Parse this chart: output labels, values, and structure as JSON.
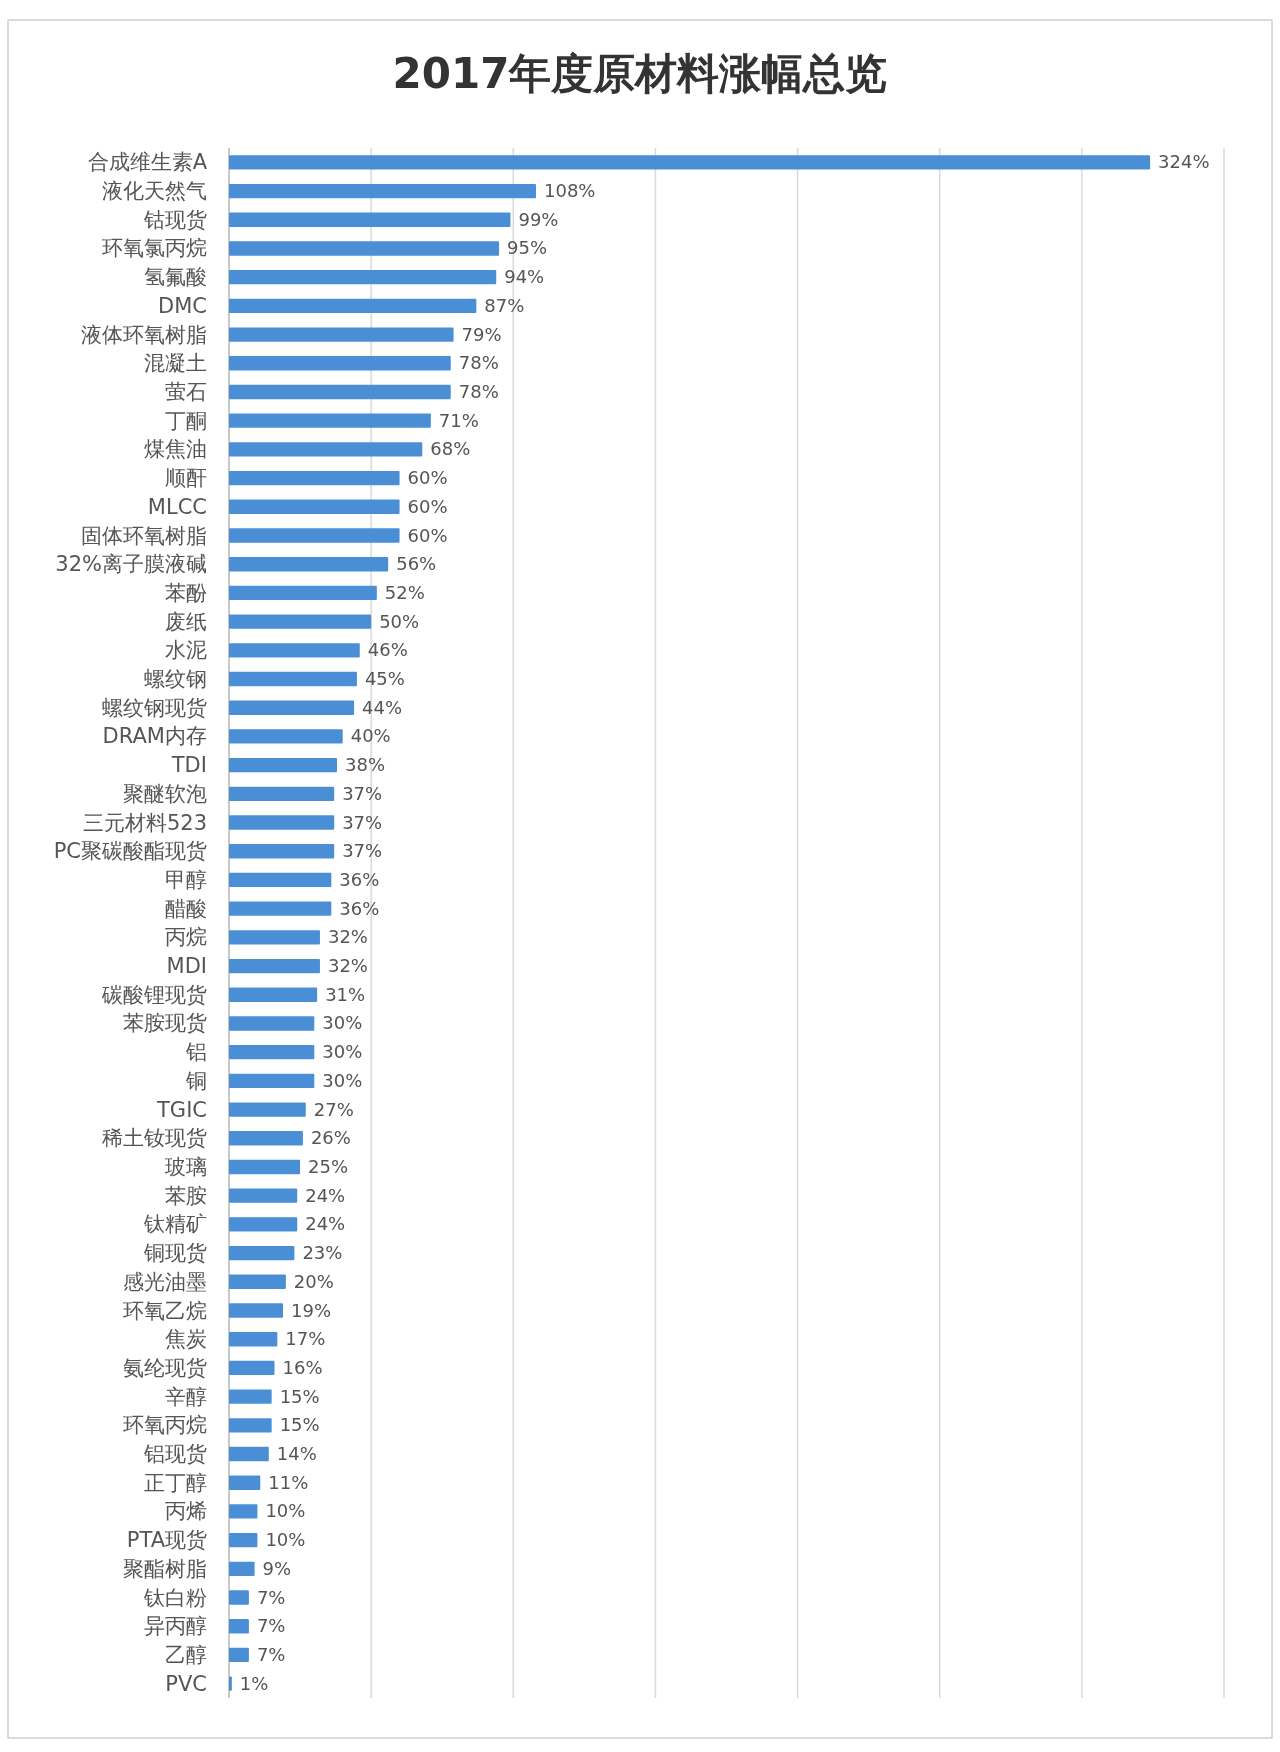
{
  "chart_data": {
    "type": "bar",
    "orientation": "horizontal",
    "title": "2017年度原材料涨幅总览",
    "categories": [
      "合成维生素A",
      "液化天然气",
      "钴现货",
      "环氧氯丙烷",
      "氢氟酸",
      "DMC",
      "液体环氧树脂",
      "混凝土",
      "萤石",
      "丁酮",
      "煤焦油",
      "顺酐",
      "MLCC",
      "固体环氧树脂",
      "32%离子膜液碱",
      "苯酚",
      "废纸",
      "水泥",
      "螺纹钢",
      "螺纹钢现货",
      "DRAM内存",
      "TDI",
      "聚醚软泡",
      "三元材料523",
      "PC聚碳酸酯现货",
      "甲醇",
      "醋酸",
      "丙烷",
      "MDI",
      "碳酸锂现货",
      "苯胺现货",
      "铝",
      "铜",
      "TGIC",
      "稀土钕现货",
      "玻璃",
      "苯胺",
      "钛精矿",
      "铜现货",
      "感光油墨",
      "环氧乙烷",
      "焦炭",
      "氨纶现货",
      "辛醇",
      "环氧丙烷",
      "铝现货",
      "正丁醇",
      "丙烯",
      "PTA现货",
      "聚酯树脂",
      "钛白粉",
      "异丙醇",
      "乙醇",
      "PVC"
    ],
    "values": [
      324,
      108,
      99,
      95,
      94,
      87,
      79,
      78,
      78,
      71,
      68,
      60,
      60,
      60,
      56,
      52,
      50,
      46,
      45,
      44,
      40,
      38,
      37,
      37,
      37,
      36,
      36,
      32,
      32,
      31,
      30,
      30,
      30,
      27,
      26,
      25,
      24,
      24,
      23,
      20,
      19,
      17,
      16,
      15,
      15,
      14,
      11,
      10,
      10,
      9,
      7,
      7,
      7,
      1
    ],
    "value_labels": [
      "324%",
      "108%",
      "99%",
      "95%",
      "94%",
      "87%",
      "79%",
      "78%",
      "78%",
      "71%",
      "68%",
      "60%",
      "60%",
      "60%",
      "56%",
      "52%",
      "50%",
      "46%",
      "45%",
      "44%",
      "40%",
      "38%",
      "37%",
      "37%",
      "37%",
      "36%",
      "36%",
      "32%",
      "32%",
      "31%",
      "30%",
      "30%",
      "30%",
      "27%",
      "26%",
      "25%",
      "24%",
      "24%",
      "23%",
      "20%",
      "19%",
      "17%",
      "16%",
      "15%",
      "15%",
      "14%",
      "11%",
      "10%",
      "10%",
      "9%",
      "7%",
      "7%",
      "7%",
      "1%"
    ],
    "color": "#4a8fd6",
    "xlim": [
      0,
      350
    ],
    "xticks": [
      {
        "value": 0,
        "label": null
      },
      {
        "value": 50,
        "label": null
      },
      {
        "value": 100,
        "label": null
      },
      {
        "value": 150,
        "label": null
      },
      {
        "value": 200,
        "label": null
      },
      {
        "value": 250,
        "label": null
      },
      {
        "value": 300,
        "label": null
      },
      {
        "value": 350,
        "label": null
      }
    ],
    "grid": "x",
    "tick_labels": "y"
  }
}
